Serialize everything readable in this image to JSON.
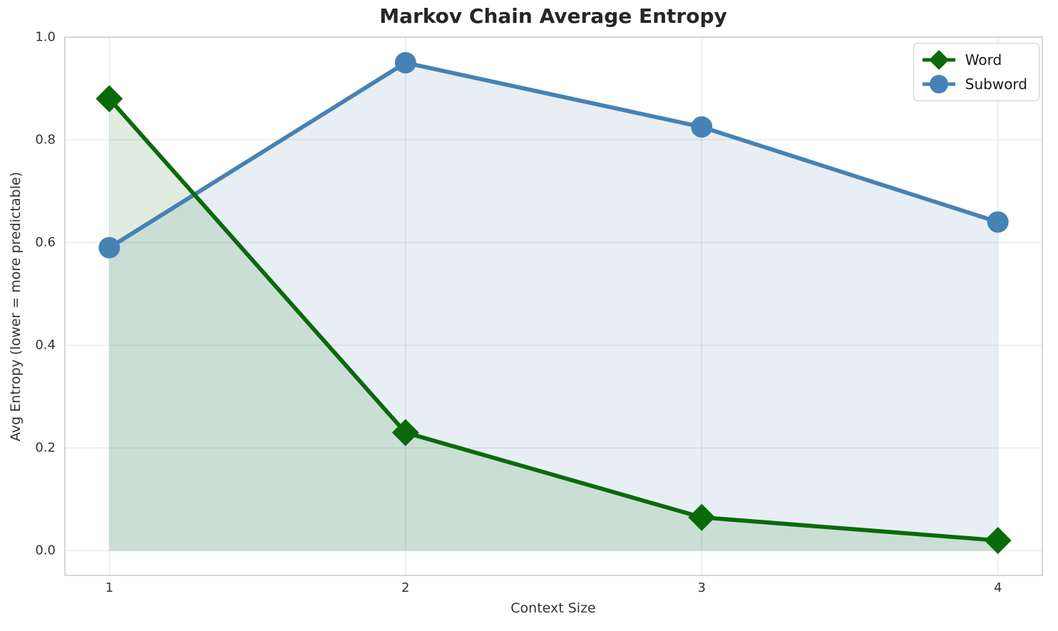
{
  "chart_data": {
    "type": "line",
    "title": "Markov Chain Average Entropy",
    "xlabel": "Context Size",
    "ylabel": "Avg Entropy (lower = more predictable)",
    "x": [
      1,
      2,
      3,
      4
    ],
    "series": [
      {
        "name": "Word",
        "values": [
          0.88,
          0.23,
          0.065,
          0.02
        ],
        "color": "#0A6A0A",
        "marker": "diamond",
        "area_fill": true,
        "fill_alpha": 0.13
      },
      {
        "name": "Subword",
        "values": [
          0.59,
          0.95,
          0.825,
          0.64
        ],
        "color": "#4682B4",
        "marker": "circle",
        "area_fill": true,
        "fill_alpha": 0.13
      }
    ],
    "xticks": {
      "values": [
        1,
        2,
        3,
        4
      ],
      "labels": [
        "1",
        "2",
        "3",
        "4"
      ]
    },
    "yticks": {
      "values": [
        0.0,
        0.2,
        0.4,
        0.6,
        0.8,
        1.0
      ],
      "labels": [
        "0.0",
        "0.2",
        "0.4",
        "0.6",
        "0.8",
        "1.0"
      ]
    },
    "xlim": [
      0.85,
      4.15
    ],
    "ylim": [
      -0.048,
      1.0
    ],
    "fill_baseline": 0,
    "grid": true,
    "grid_color": "#e8e8e8",
    "spine_color": "#cccccc",
    "legend": {
      "position": "upper right",
      "entries": [
        "Word",
        "Subword"
      ]
    }
  }
}
